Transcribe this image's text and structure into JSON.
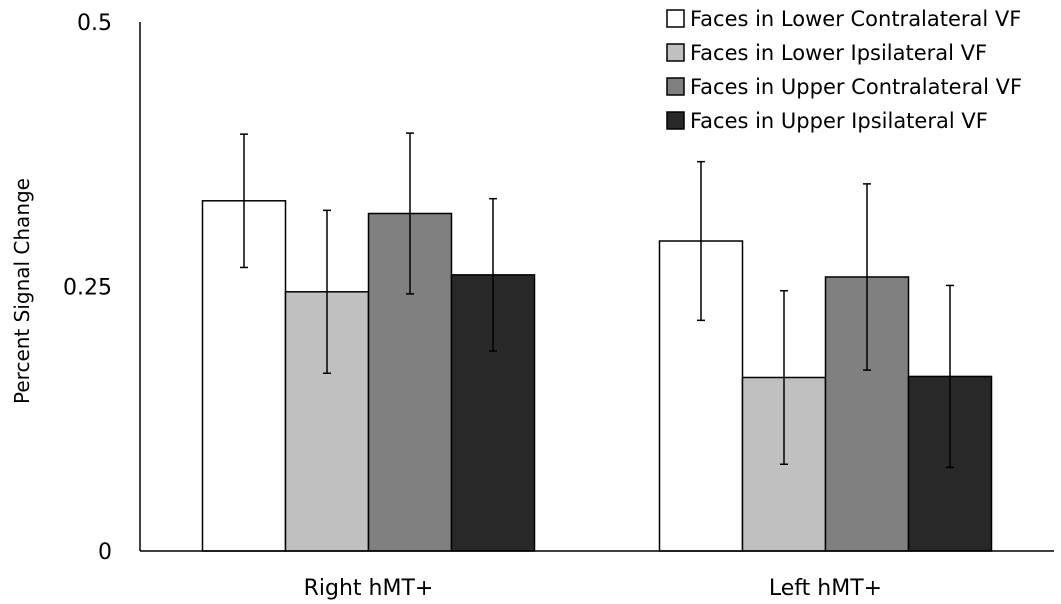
{
  "chart_data": {
    "type": "bar",
    "title": "",
    "xlabel": "",
    "ylabel": "Percent Signal Change",
    "ylim": [
      0,
      0.5
    ],
    "yticks": [
      0,
      0.25,
      0.5
    ],
    "ytick_labels": [
      "0",
      "0.25",
      "0.5"
    ],
    "grid": false,
    "legend_position": "top-right",
    "categories": [
      "Right hMT+",
      "Left hMT+"
    ],
    "series": [
      {
        "name": "Faces in Lower Contralateral VF",
        "color": "#ffffff",
        "values": [
          0.331,
          0.293
        ],
        "errors": [
          0.063,
          0.075
        ]
      },
      {
        "name": "Faces in Lower Ipsilateral VF",
        "color": "#c0c0c0",
        "values": [
          0.245,
          0.164
        ],
        "errors": [
          0.077,
          0.082
        ]
      },
      {
        "name": "Faces in Upper Contralateral VF",
        "color": "#808080",
        "values": [
          0.319,
          0.259
        ],
        "errors": [
          0.076,
          0.088
        ]
      },
      {
        "name": "Faces in Upper Ipsilateral VF",
        "color": "#282828",
        "values": [
          0.261,
          0.165
        ],
        "errors": [
          0.072,
          0.086
        ]
      }
    ]
  }
}
